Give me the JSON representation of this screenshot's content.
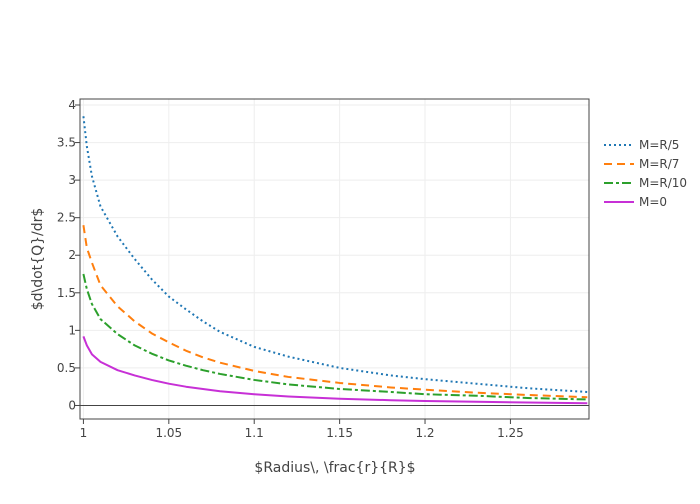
{
  "chart_data": {
    "type": "line",
    "title": "",
    "xlabel": "$Radius\\, \\frac{r}{R}$",
    "ylabel": "$d\\dot{Q}/dr$",
    "xlim": [
      0.998,
      1.296
    ],
    "ylim": [
      -0.18,
      4.08
    ],
    "grid": true,
    "legend_position": "right",
    "x_ticks": [
      1,
      1.05,
      1.1,
      1.15,
      1.2,
      1.25
    ],
    "x_tick_labels": [
      "1",
      "1.05",
      "1.1",
      "1.15",
      "1.2",
      "1.25"
    ],
    "y_ticks": [
      0,
      0.5,
      1,
      1.5,
      2,
      2.5,
      3,
      3.5,
      4
    ],
    "y_tick_labels": [
      "0",
      "0.5",
      "1",
      "1.5",
      "2",
      "2.5",
      "3",
      "3.5",
      "4"
    ],
    "x": [
      1.0,
      1.002,
      1.005,
      1.01,
      1.02,
      1.03,
      1.04,
      1.05,
      1.06,
      1.07,
      1.08,
      1.1,
      1.12,
      1.15,
      1.18,
      1.2,
      1.23,
      1.26,
      1.295
    ],
    "series": [
      {
        "name": "M=R/5",
        "color": "#1f77b4",
        "dash": "dotted",
        "values": [
          3.85,
          3.45,
          3.05,
          2.65,
          2.25,
          1.95,
          1.68,
          1.45,
          1.28,
          1.12,
          0.98,
          0.78,
          0.65,
          0.5,
          0.4,
          0.35,
          0.29,
          0.23,
          0.18
        ]
      },
      {
        "name": "M=R/7",
        "color": "#ff7f0e",
        "dash": "dashed",
        "values": [
          2.4,
          2.1,
          1.9,
          1.6,
          1.32,
          1.12,
          0.96,
          0.84,
          0.73,
          0.64,
          0.57,
          0.46,
          0.38,
          0.3,
          0.24,
          0.21,
          0.17,
          0.14,
          0.11
        ]
      },
      {
        "name": "M=R/10",
        "color": "#2ca02c",
        "dash": "dashdot",
        "values": [
          1.75,
          1.55,
          1.35,
          1.15,
          0.95,
          0.8,
          0.69,
          0.6,
          0.53,
          0.47,
          0.42,
          0.34,
          0.28,
          0.22,
          0.18,
          0.15,
          0.13,
          0.1,
          0.08
        ]
      },
      {
        "name": "M=0",
        "color": "#c730d6",
        "dash": "solid",
        "values": [
          0.92,
          0.8,
          0.68,
          0.58,
          0.47,
          0.4,
          0.34,
          0.29,
          0.25,
          0.22,
          0.19,
          0.15,
          0.12,
          0.09,
          0.07,
          0.06,
          0.05,
          0.04,
          0.03
        ]
      }
    ]
  }
}
